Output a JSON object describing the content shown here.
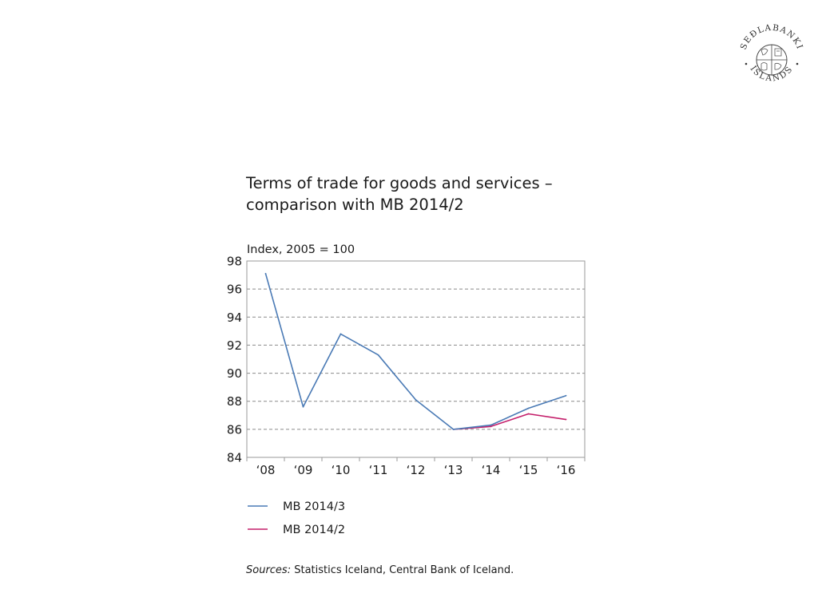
{
  "logo": {
    "name": "central-bank-of-iceland-seal",
    "text_top": "SEÐLABANKI",
    "text_bottom": "ÍSLANDS"
  },
  "title": {
    "line1": "Terms of trade for goods and services –",
    "line2": "comparison with MB 2014/2"
  },
  "sources": {
    "label": "Sources:",
    "text": "Statistics Iceland, Central Bank of Iceland."
  },
  "chart_data": {
    "type": "line",
    "ylabel": "Index, 2005 = 100",
    "ylim": [
      84,
      98
    ],
    "yticks": [
      "84",
      "86",
      "88",
      "90",
      "92",
      "94",
      "96",
      "98"
    ],
    "categories": [
      "‘08",
      "‘09",
      "‘10",
      "‘11",
      "‘12",
      "‘13",
      "‘14",
      "‘15",
      "‘16"
    ],
    "grid": "horizontal-dashed",
    "legend_position": "below",
    "series": [
      {
        "name": "MB 2014/3",
        "color": "#4a7ab5",
        "values": [
          97.1,
          87.6,
          92.8,
          91.3,
          88.1,
          86.0,
          86.3,
          87.5,
          88.4
        ]
      },
      {
        "name": "MB 2014/2",
        "color": "#c41e6a",
        "values": [
          null,
          null,
          null,
          null,
          null,
          86.0,
          86.2,
          87.1,
          86.7
        ]
      }
    ]
  }
}
